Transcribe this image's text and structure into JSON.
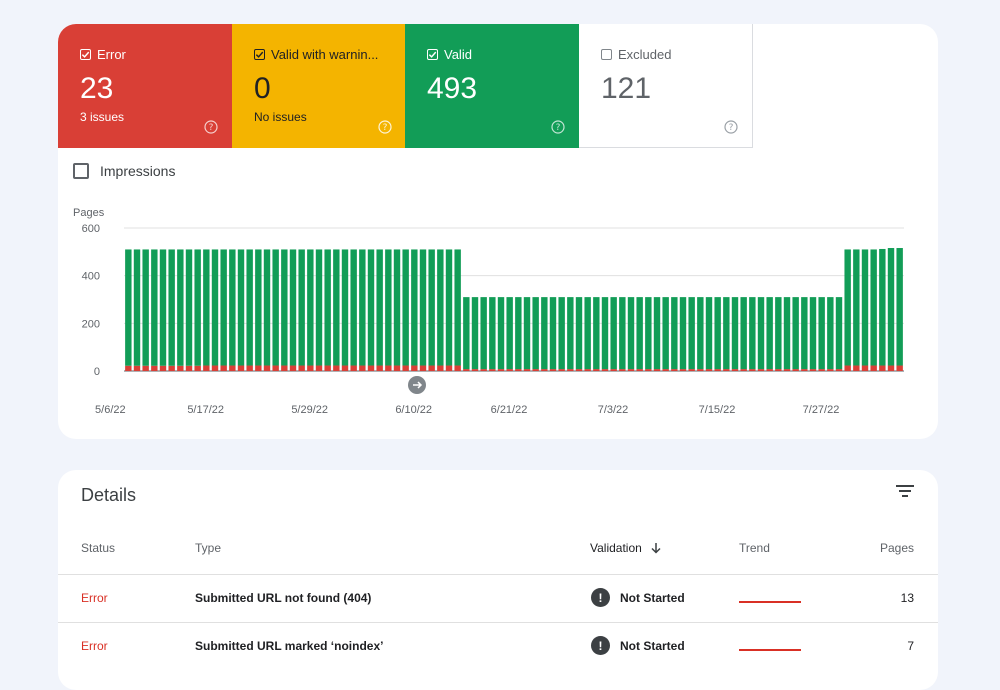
{
  "tiles": {
    "error": {
      "label": "Error",
      "value": "23",
      "sub": "3 issues",
      "checked": true,
      "color": "#d93f36"
    },
    "warning": {
      "label": "Valid with warnin...",
      "value": "0",
      "sub": "No issues",
      "checked": true,
      "color": "#f4b400"
    },
    "valid": {
      "label": "Valid",
      "value": "493",
      "sub": "",
      "checked": true,
      "color": "#129d57"
    },
    "excluded": {
      "label": "Excluded",
      "value": "121",
      "sub": "",
      "checked": false,
      "color": "#ffffff"
    }
  },
  "impressions": {
    "label": "Impressions",
    "checked": false
  },
  "chart_data": {
    "type": "bar",
    "stacked": true,
    "ylabel": "Pages",
    "ylim": [
      0,
      600
    ],
    "yticks": [
      0,
      200,
      400,
      600
    ],
    "xtick_labels": [
      "5/6/22",
      "5/17/22",
      "5/29/22",
      "6/10/22",
      "6/21/22",
      "7/3/22",
      "7/15/22",
      "7/27/22"
    ],
    "start_date": "5/6/22",
    "series": [
      {
        "name": "Error",
        "color": "#d93f36",
        "values": [
          22,
          22,
          22,
          22,
          22,
          22,
          22,
          22,
          22,
          23,
          23,
          23,
          23,
          23,
          23,
          23,
          23,
          23,
          23,
          23,
          23,
          23,
          23,
          23,
          23,
          23,
          23,
          23,
          23,
          23,
          23,
          23,
          23,
          23,
          23,
          23,
          23,
          23,
          23,
          8,
          8,
          8,
          8,
          8,
          8,
          8,
          8,
          8,
          8,
          8,
          8,
          8,
          8,
          8,
          8,
          8,
          8,
          8,
          8,
          8,
          8,
          8,
          8,
          8,
          8,
          8,
          8,
          8,
          8,
          8,
          8,
          8,
          8,
          8,
          8,
          8,
          8,
          8,
          8,
          8,
          8,
          8,
          8,
          23,
          23,
          23,
          23,
          23,
          23,
          23
        ]
      },
      {
        "name": "Valid",
        "color": "#129d57",
        "values": [
          488,
          488,
          488,
          488,
          488,
          488,
          488,
          488,
          488,
          487,
          487,
          487,
          487,
          487,
          487,
          487,
          487,
          487,
          487,
          487,
          487,
          487,
          487,
          487,
          487,
          487,
          487,
          487,
          487,
          487,
          487,
          487,
          487,
          487,
          487,
          487,
          487,
          487,
          487,
          302,
          302,
          302,
          302,
          302,
          302,
          302,
          302,
          302,
          302,
          302,
          302,
          302,
          302,
          302,
          302,
          302,
          302,
          302,
          302,
          302,
          302,
          302,
          302,
          302,
          302,
          302,
          302,
          302,
          302,
          302,
          302,
          302,
          302,
          302,
          302,
          302,
          302,
          302,
          302,
          302,
          302,
          302,
          302,
          487,
          487,
          487,
          487,
          489,
          493,
          493
        ]
      }
    ]
  },
  "details": {
    "title": "Details",
    "columns": {
      "status": "Status",
      "type": "Type",
      "validation": "Validation",
      "trend": "Trend",
      "pages": "Pages"
    },
    "rows": [
      {
        "status": "Error",
        "type": "Submitted URL not found (404)",
        "validation": "Not Started",
        "pages": "13"
      },
      {
        "status": "Error",
        "type": "Submitted URL marked ‘noindex’",
        "validation": "Not Started",
        "pages": "7"
      }
    ]
  },
  "icons": {
    "checkbox": "check-icon",
    "help": "help-circle-icon",
    "arrow": "arrow-right-icon",
    "filter": "filter-icon",
    "sort": "arrow-down-icon",
    "alert": "exclamation-icon"
  }
}
